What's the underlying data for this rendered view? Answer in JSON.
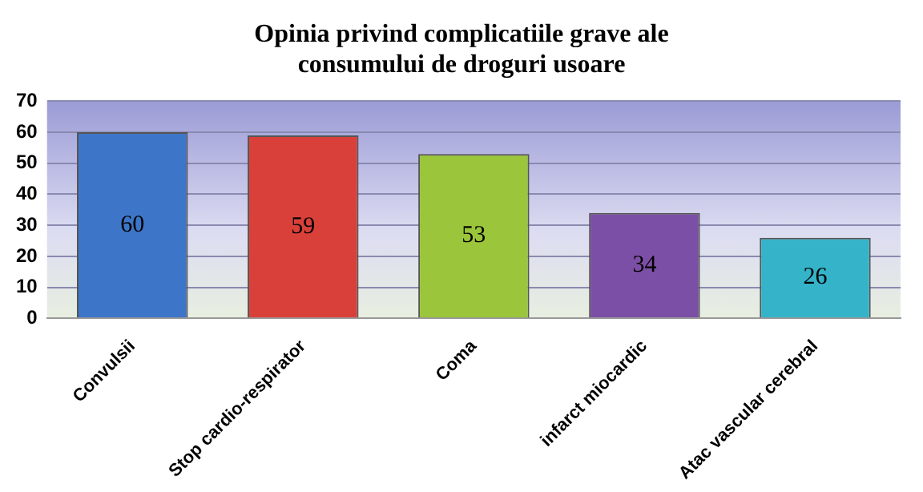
{
  "chart_data": {
    "type": "bar",
    "title": "Opinia privind complicatiile grave ale consumului de droguri usoare",
    "categories": [
      "Convulsii",
      "Stop cardio-respirator",
      "Coma",
      "infarct miocardic",
      "Atac vascular cerebral"
    ],
    "values": [
      60,
      59,
      53,
      34,
      26
    ],
    "colors": [
      "#3d76c8",
      "#d9403a",
      "#9bc53a",
      "#7c4fa6",
      "#35b3c9"
    ],
    "ylim": [
      0,
      70
    ],
    "yticks": [
      0,
      10,
      20,
      30,
      40,
      50,
      60,
      70
    ],
    "grid": "y",
    "data_labels": true,
    "legend": false
  }
}
